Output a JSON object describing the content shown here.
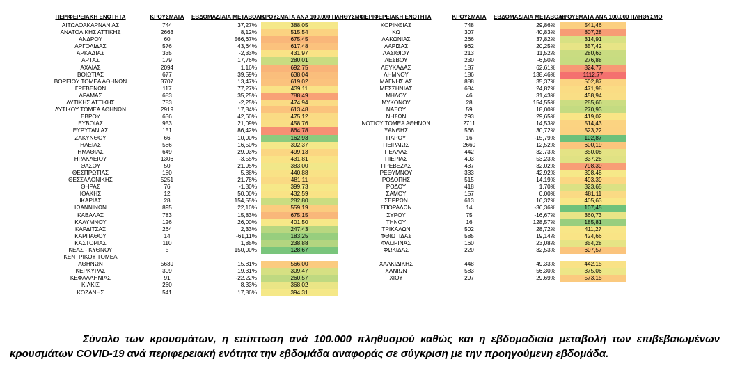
{
  "headers": {
    "region": "ΠΕΡΙΦΕΡΕΙΑΚΗ ΕΝΟΤΗΤΑ",
    "cases": "ΚΡΟΥΣΜΑΤΑ",
    "weekly_change": "ΕΒΔΟΜΑΔΙΑΙΑ ΜΕΤΑΒΟΛΗ",
    "incidence": "ΚΡΟΥΣΜΑΤΑ ΑΝΑ 100.000 ΠΛΗΘΥΣΜΟ"
  },
  "left_rows": [
    {
      "name": "ΑΙΤΩΛΟΑΚΑΡΝΑΝΙΑΣ",
      "cases": "744",
      "change": "37,27%",
      "incidence": "388,05",
      "color": "#f5e88a"
    },
    {
      "name": "ΑΝΑΤΟΛΙΚΗΣ ΑΤΤΙΚΗΣ",
      "cases": "2663",
      "change": "8,12%",
      "incidence": "515,54",
      "color": "#fbd381"
    },
    {
      "name": "ΑΝΔΡΟΥ",
      "cases": "60",
      "change": "566,67%",
      "incidence": "675,45",
      "color": "#f9b77a"
    },
    {
      "name": "ΑΡΓΟΛΙΔΑΣ",
      "cases": "576",
      "change": "43,64%",
      "incidence": "617,48",
      "color": "#fbc27d"
    },
    {
      "name": "ΑΡΚΑΔΙΑΣ",
      "cases": "335",
      "change": "-2,33%",
      "incidence": "431,97",
      "color": "#f9e386"
    },
    {
      "name": "ΑΡΤΑΣ",
      "cases": "179",
      "change": "17,76%",
      "incidence": "280,01",
      "color": "#c9dc81"
    },
    {
      "name": "ΑΧΑΪΑΣ",
      "cases": "2094",
      "change": "1,16%",
      "incidence": "692,75",
      "color": "#f9b479"
    },
    {
      "name": "ΒΟΙΩΤΙΑΣ",
      "cases": "677",
      "change": "39,59%",
      "incidence": "638,04",
      "color": "#fabe7c"
    },
    {
      "name": "ΒΟΡΕΙΟΥ ΤΟΜΕΑ ΑΘΗΝΩΝ",
      "cases": "3707",
      "change": "13,47%",
      "incidence": "619,02",
      "color": "#fbc27d"
    },
    {
      "name": "ΓΡΕΒΕΝΩΝ",
      "cases": "117",
      "change": "77,27%",
      "incidence": "439,11",
      "color": "#f9e286"
    },
    {
      "name": "ΔΡΑΜΑΣ",
      "cases": "683",
      "change": "35,25%",
      "incidence": "788,49",
      "color": "#f8a176"
    },
    {
      "name": "ΔΥΤΙΚΗΣ ΑΤΤΙΚΗΣ",
      "cases": "783",
      "change": "-2,25%",
      "incidence": "474,94",
      "color": "#fadb84"
    },
    {
      "name": "ΔΥΤΙΚΟΥ ΤΟΜΕΑ ΑΘΗΝΩΝ",
      "cases": "2919",
      "change": "17,84%",
      "incidence": "613,48",
      "color": "#fbc37d"
    },
    {
      "name": "ΕΒΡΟΥ",
      "cases": "636",
      "change": "42,60%",
      "incidence": "475,12",
      "color": "#fadb84"
    },
    {
      "name": "ΕΥΒΟΙΑΣ",
      "cases": "953",
      "change": "21,09%",
      "incidence": "458,76",
      "color": "#f9de85"
    },
    {
      "name": "ΕΥΡΥΤΑΝΙΑΣ",
      "cases": "151",
      "change": "86,42%",
      "incidence": "864,78",
      "color": "#f69074"
    },
    {
      "name": "ΖΑΚΥΝΘΟΥ",
      "cases": "66",
      "change": "10,00%",
      "incidence": "162,93",
      "color": "#8ccb7e"
    },
    {
      "name": "ΗΛΕΙΑΣ",
      "cases": "586",
      "change": "16,50%",
      "incidence": "392,37",
      "color": "#f4e889"
    },
    {
      "name": "ΗΜΑΘΙΑΣ",
      "cases": "649",
      "change": "29,03%",
      "incidence": "499,13",
      "color": "#fbd682"
    },
    {
      "name": "ΗΡΑΚΛΕΙΟΥ",
      "cases": "1306",
      "change": "-3,55%",
      "incidence": "431,81",
      "color": "#f9e386"
    },
    {
      "name": "ΘΑΣΟΥ",
      "cases": "50",
      "change": "21,95%",
      "incidence": "383,00",
      "color": "#f1e789"
    },
    {
      "name": "ΘΕΣΠΡΩΤΙΑΣ",
      "cases": "180",
      "change": "5,88%",
      "incidence": "440,88",
      "color": "#f9e286"
    },
    {
      "name": "ΘΕΣΣΑΛΟΝΙΚΗΣ",
      "cases": "5251",
      "change": "21,78%",
      "incidence": "481,11",
      "color": "#fada84"
    },
    {
      "name": "ΘΗΡΑΣ",
      "cases": "76",
      "change": "-1,30%",
      "incidence": "399,73",
      "color": "#f6e888"
    },
    {
      "name": "ΙΘΑΚΗΣ",
      "cases": "12",
      "change": "50,00%",
      "incidence": "432,59",
      "color": "#f9e386"
    },
    {
      "name": "ΙΚΑΡΙΑΣ",
      "cases": "28",
      "change": "154,55%",
      "incidence": "282,80",
      "color": "#cadd81"
    },
    {
      "name": "ΙΩΑΝΝΙΝΩΝ",
      "cases": "895",
      "change": "22,10%",
      "incidence": "559,19",
      "color": "#fbcc7f"
    },
    {
      "name": "ΚΑΒΑΛΑΣ",
      "cases": "783",
      "change": "15,83%",
      "incidence": "675,15",
      "color": "#f9b77a"
    },
    {
      "name": "ΚΑΛΥΜΝΟΥ",
      "cases": "126",
      "change": "26,00%",
      "incidence": "401,50",
      "color": "#f7e888"
    },
    {
      "name": "ΚΑΡΔΙΤΣΑΣ",
      "cases": "264",
      "change": "2,33%",
      "incidence": "247,43",
      "color": "#b8d780"
    },
    {
      "name": "ΚΑΡΠΑΘΟΥ",
      "cases": "14",
      "change": "-61,11%",
      "incidence": "183,25",
      "color": "#97ce7e"
    },
    {
      "name": "ΚΑΣΤΟΡΙΑΣ",
      "cases": "110",
      "change": "1,85%",
      "incidence": "238,88",
      "color": "#b3d580"
    },
    {
      "name": "ΚΕΑΣ - ΚΥΘΝΟΥ",
      "cases": "5",
      "change": "150,00%",
      "incidence": "128,67",
      "color": "#79c57c"
    },
    {
      "name": "ΚΕΝΤΡΙΚΟΥ ΤΟΜΕΑ",
      "cases": "",
      "change": "",
      "incidence": "",
      "color": "#ffffff"
    },
    {
      "name": "ΑΘΗΝΩΝ",
      "cases": "5639",
      "change": "15,81%",
      "incidence": "566,00",
      "color": "#fbcb7f"
    },
    {
      "name": "ΚΕΡΚΥΡΑΣ",
      "cases": "309",
      "change": "19,31%",
      "incidence": "309,47",
      "color": "#d6e083"
    },
    {
      "name": "ΚΕΦΑΛΛΗΝΙΑΣ",
      "cases": "91",
      "change": "-22,22%",
      "incidence": "260,57",
      "color": "#bfd981"
    },
    {
      "name": "ΚΙΛΚΙΣ",
      "cases": "260",
      "change": "8,33%",
      "incidence": "368,02",
      "color": "#eae586"
    },
    {
      "name": "ΚΟΖΑΝΗΣ",
      "cases": "541",
      "change": "17,86%",
      "incidence": "394,31",
      "color": "#f5e888"
    }
  ],
  "right_rows": [
    {
      "name": "ΚΟΡΙΝΘΙΑΣ",
      "cases": "748",
      "change": "29,86%",
      "incidence": "541,46",
      "color": "#fbcf80"
    },
    {
      "name": "ΚΩ",
      "cases": "307",
      "change": "40,83%",
      "incidence": "807,28",
      "color": "#f79c75"
    },
    {
      "name": "ΛΑΚΩΝΙΑΣ",
      "cases": "266",
      "change": "37,82%",
      "incidence": "314,91",
      "color": "#d8e183"
    },
    {
      "name": "ΛΑΡΙΣΑΣ",
      "cases": "962",
      "change": "20,25%",
      "incidence": "357,42",
      "color": "#e7e486"
    },
    {
      "name": "ΛΑΣΙΘΙΟΥ",
      "cases": "213",
      "change": "11,52%",
      "incidence": "280,63",
      "color": "#c9dc81"
    },
    {
      "name": "ΛΕΣΒΟΥ",
      "cases": "230",
      "change": "-6,50%",
      "incidence": "276,88",
      "color": "#c7dc81"
    },
    {
      "name": "ΛΕΥΚΑΔΑΣ",
      "cases": "187",
      "change": "62,61%",
      "incidence": "824,77",
      "color": "#f79975"
    },
    {
      "name": "ΛΗΜΝΟΥ",
      "cases": "186",
      "change": "138,46%",
      "incidence": "1112,77",
      "color": "#f4716f"
    },
    {
      "name": "ΜΑΓΝΗΣΙΑΣ",
      "cases": "888",
      "change": "35,37%",
      "incidence": "502,87",
      "color": "#fbd582"
    },
    {
      "name": "ΜΕΣΣΗΝΙΑΣ",
      "cases": "684",
      "change": "24,82%",
      "incidence": "471,98",
      "color": "#fadc84"
    },
    {
      "name": "ΜΗΛΟΥ",
      "cases": "46",
      "change": "31,43%",
      "incidence": "458,94",
      "color": "#f9de85"
    },
    {
      "name": "ΜΥΚΟΝΟΥ",
      "cases": "28",
      "change": "154,55%",
      "incidence": "285,66",
      "color": "#cbdd82"
    },
    {
      "name": "ΝΑΞΟΥ",
      "cases": "59",
      "change": "18,00%",
      "incidence": "270,93",
      "color": "#c4db81"
    },
    {
      "name": "ΝΗΣΩΝ",
      "cases": "293",
      "change": "29,65%",
      "incidence": "419,02",
      "color": "#f9e586"
    },
    {
      "name": "ΝΟΤΙΟΥ ΤΟΜΕΑ ΑΘΗΝΩΝ",
      "cases": "2711",
      "change": "14,53%",
      "incidence": "514,43",
      "color": "#fbd381"
    },
    {
      "name": "ΞΑΝΘΗΣ",
      "cases": "566",
      "change": "30,72%",
      "incidence": "523,22",
      "color": "#fbd281"
    },
    {
      "name": "ΠΑΡΟΥ",
      "cases": "16",
      "change": "-15,79%",
      "incidence": "102,87",
      "color": "#6cc17b"
    },
    {
      "name": "ΠΕΙΡΑΙΩΣ",
      "cases": "2660",
      "change": "12,52%",
      "incidence": "600,19",
      "color": "#fbc57d"
    },
    {
      "name": "ΠΕΛΛΑΣ",
      "cases": "442",
      "change": "32,73%",
      "incidence": "350,08",
      "color": "#e4e385"
    },
    {
      "name": "ΠΙΕΡΙΑΣ",
      "cases": "403",
      "change": "53,23%",
      "incidence": "337,28",
      "color": "#e0e284"
    },
    {
      "name": "ΠΡΕΒΕΖΑΣ",
      "cases": "437",
      "change": "32,02%",
      "incidence": "798,39",
      "color": "#f89e76"
    },
    {
      "name": "ΡΕΘΥΜΝΟΥ",
      "cases": "333",
      "change": "42,92%",
      "incidence": "398,48",
      "color": "#f6e888"
    },
    {
      "name": "ΡΟΔΟΠΗΣ",
      "cases": "515",
      "change": "14,19%",
      "incidence": "493,39",
      "color": "#fbd783"
    },
    {
      "name": "ΡΟΔΟΥ",
      "cases": "418",
      "change": "1,70%",
      "incidence": "323,65",
      "color": "#dbe184"
    },
    {
      "name": "ΣΑΜΟΥ",
      "cases": "157",
      "change": "0,00%",
      "incidence": "481,11",
      "color": "#fada84"
    },
    {
      "name": "ΣΕΡΡΩΝ",
      "cases": "613",
      "change": "16,32%",
      "incidence": "405,63",
      "color": "#f8e787"
    },
    {
      "name": "ΣΠΟΡΑΔΩΝ",
      "cases": "14",
      "change": "-36,36%",
      "incidence": "107,45",
      "color": "#6ec27b"
    },
    {
      "name": "ΣΥΡΟΥ",
      "cases": "75",
      "change": "-16,67%",
      "incidence": "360,73",
      "color": "#e8e486"
    },
    {
      "name": "ΤΗΝΟΥ",
      "cases": "16",
      "change": "128,57%",
      "incidence": "185,81",
      "color": "#98ce7e"
    },
    {
      "name": "ΤΡΙΚΑΛΩΝ",
      "cases": "502",
      "change": "28,72%",
      "incidence": "411,27",
      "color": "#f8e687"
    },
    {
      "name": "ΦΘΙΩΤΙΔΑΣ",
      "cases": "585",
      "change": "19,14%",
      "incidence": "424,66",
      "color": "#f9e486"
    },
    {
      "name": "ΦΛΩΡΙΝΑΣ",
      "cases": "160",
      "change": "23,08%",
      "incidence": "354,28",
      "color": "#e6e485"
    },
    {
      "name": "ΦΩΚΙΔΑΣ",
      "cases": "220",
      "change": "32,53%",
      "incidence": "607,57",
      "color": "#fbc47d"
    },
    {
      "name": "",
      "cases": "",
      "change": "",
      "incidence": "",
      "color": "#ffffff"
    },
    {
      "name": "ΧΑΛΚΙΔΙΚΗΣ",
      "cases": "448",
      "change": "49,33%",
      "incidence": "442,15",
      "color": "#f9e286"
    },
    {
      "name": "ΧΑΝΙΩΝ",
      "cases": "583",
      "change": "56,30%",
      "incidence": "375,06",
      "color": "#ede687"
    },
    {
      "name": "ΧΙΟΥ",
      "cases": "297",
      "change": "29,69%",
      "incidence": "573,15",
      "color": "#fbca7f"
    },
    {
      "name": "",
      "cases": "",
      "change": "",
      "incidence": "",
      "color": "#ffffff"
    },
    {
      "name": "",
      "cases": "",
      "change": "",
      "incidence": "",
      "color": "#ffffff"
    }
  ],
  "caption": "Σύνολο των κρουσμάτων, η επίπτωση ανά 100.000 πληθυσμού καθώς και η εβδομαδιαία μεταβολή των επιβεβαιωμένων κρουσμάτων COVID-19 ανά περιφερειακή ενότητα την εβδομάδα αναφοράς σε σύγκριση με την προηγούμενη εβδομάδα."
}
